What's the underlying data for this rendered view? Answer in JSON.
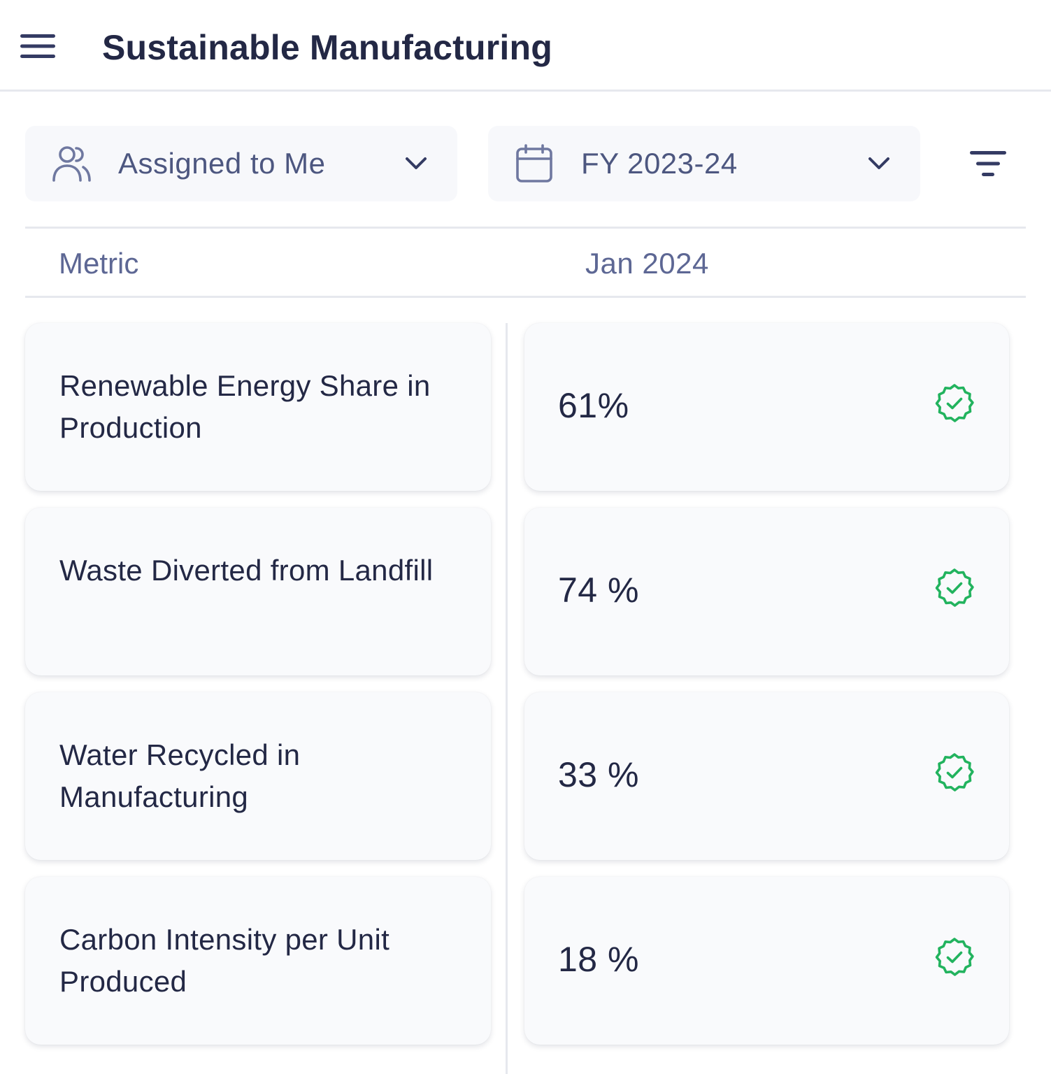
{
  "header": {
    "menu_icon": "hamburger-menu-icon",
    "title": "Sustainable Manufacturing"
  },
  "filters": {
    "assignee": {
      "icon": "users-icon",
      "label": "Assigned to Me",
      "chevron": "chevron-down-icon"
    },
    "period": {
      "icon": "calendar-icon",
      "label": "FY 2023-24",
      "chevron": "chevron-down-icon"
    },
    "sort_icon": "filter-lines-icon"
  },
  "table": {
    "columns": [
      "Metric",
      "Jan 2024"
    ],
    "rows": [
      {
        "metric": "Renewable Energy Share in Production",
        "value": "61%",
        "status_icon": "verified-badge-icon"
      },
      {
        "metric": "Waste Diverted from Landfill",
        "value": "74 %",
        "status_icon": "verified-badge-icon"
      },
      {
        "metric": "Water Recycled in Manufacturing",
        "value": "33 %",
        "status_icon": "verified-badge-icon"
      },
      {
        "metric": "Carbon Intensity per Unit Produced",
        "value": "18 %",
        "status_icon": "verified-badge-icon"
      }
    ]
  },
  "colors": {
    "title_text": "#232845",
    "muted_text": "#5d6794",
    "icon": "#4d5780",
    "verified": "#22b35e",
    "card_bg": "#f9fafc",
    "pill_bg": "#f7f8fb",
    "divider": "#e6e8ee"
  }
}
